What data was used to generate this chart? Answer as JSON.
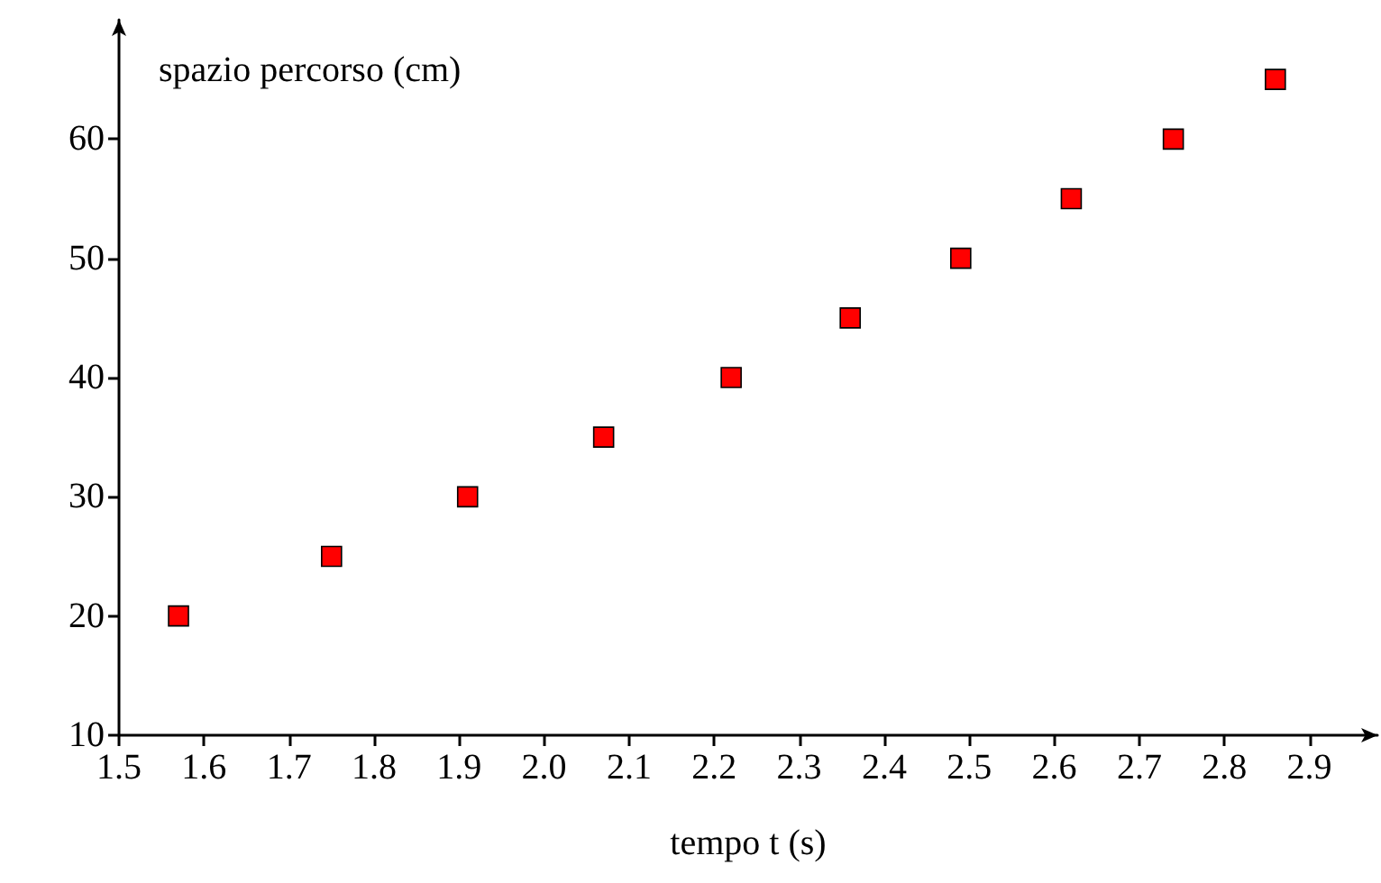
{
  "chart_data": {
    "type": "scatter",
    "xlabel": "tempo t (s)",
    "ylabel": "spazio percorso (cm)",
    "x": [
      1.57,
      1.75,
      1.91,
      2.07,
      2.22,
      2.36,
      2.49,
      2.62,
      2.74,
      2.86
    ],
    "values": [
      20,
      25,
      30,
      35,
      40,
      45,
      50,
      55,
      60,
      65
    ],
    "color": "#ff0000",
    "marker": "square",
    "xlim": [
      1.5,
      2.98
    ],
    "ylim": [
      10,
      70
    ],
    "xticks": [
      1.5,
      1.6,
      1.7,
      1.8,
      1.9,
      {
        "value": 2,
        "label": "2.0"
      },
      2.1,
      2.2,
      2.3,
      2.4,
      2.5,
      2.6,
      2.7,
      2.8,
      2.9
    ],
    "yticks": [
      10,
      20,
      30,
      40,
      50,
      60
    ],
    "grid": false
  }
}
